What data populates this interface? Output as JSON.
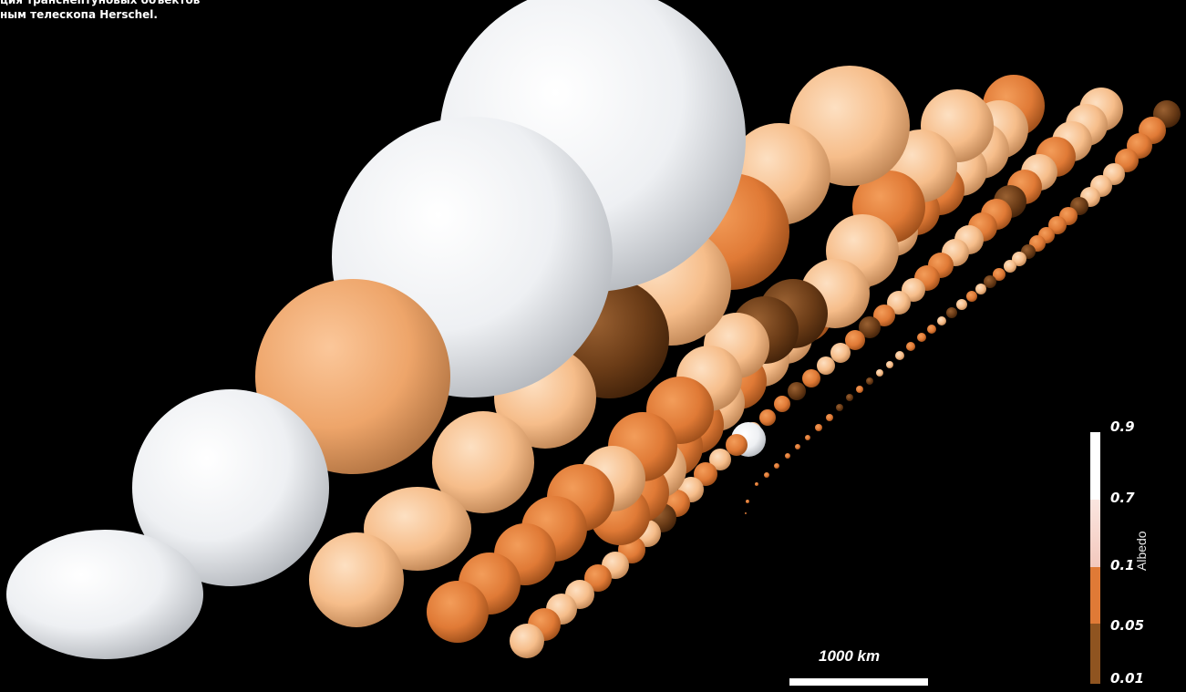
{
  "caption": {
    "line1": "ция транснептуновых объектов",
    "line2": "ным телескопа Herschel."
  },
  "legend": {
    "title": "Albedo",
    "ticks": [
      {
        "label": "0.9",
        "color": "#ffffff"
      },
      {
        "label": "0.7",
        "color": "#f6d4cc"
      },
      {
        "label": "0.1",
        "color": "#e07a36"
      },
      {
        "label": "0.05",
        "color": "#8f5420"
      },
      {
        "label": "0.01",
        "color": "#5b3412"
      }
    ]
  },
  "scale_bar": {
    "label": "1000 km"
  },
  "colors": {
    "background": "#000000",
    "white_body": "#f2f2f4",
    "light_tan": "#f6bd8a",
    "tan": "#eea56a",
    "orange": "#e07a36",
    "dark_brown": "#6b3c17"
  }
}
